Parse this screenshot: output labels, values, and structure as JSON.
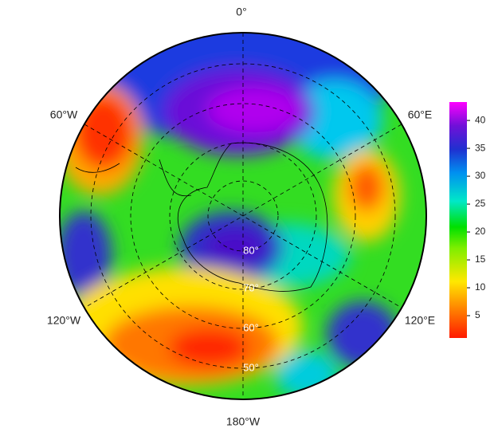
{
  "map": {
    "longitude_labels": [
      "0°",
      "60°E",
      "120°E",
      "180°W",
      "120°W",
      "60°W"
    ],
    "latitude_labels": [
      "80°",
      "70°",
      "60°",
      "50°"
    ],
    "colorbar": {
      "range": [
        1,
        43.3
      ],
      "ticks": [
        5,
        10,
        15,
        20,
        25,
        30,
        35,
        40
      ]
    }
  }
}
